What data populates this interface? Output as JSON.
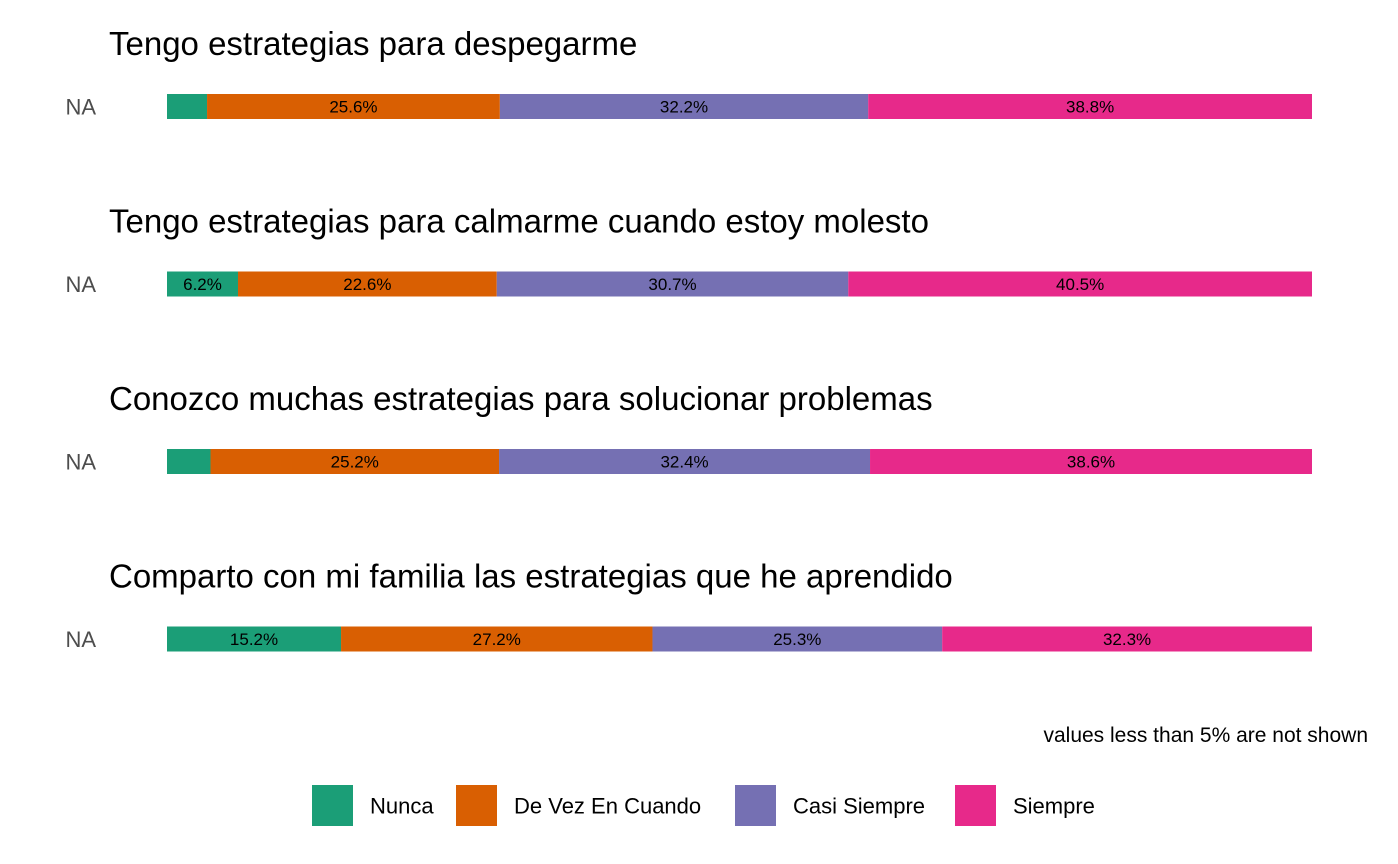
{
  "chart_data": {
    "type": "bar",
    "orientation": "horizontal",
    "stacked": true,
    "legend_position": "bottom",
    "grid": false,
    "xlim": [
      0,
      100
    ],
    "categories": [
      "Nunca",
      "De Vez En Cuando",
      "Casi Siempre",
      "Siempre"
    ],
    "colors": [
      "#1b9e77",
      "#d95f02",
      "#7570b3",
      "#e7298a"
    ],
    "caption": "values less than 5% are not shown",
    "panels": [
      {
        "title": "Tengo estrategias para despegarme",
        "ylabel": "NA",
        "values": [
          3.5,
          25.6,
          32.2,
          38.8
        ],
        "labels": [
          "",
          "25.6%",
          "32.2%",
          "38.8%"
        ]
      },
      {
        "title": "Tengo estrategias para calmarme cuando estoy molesto",
        "ylabel": "NA",
        "values": [
          6.2,
          22.6,
          30.7,
          40.5
        ],
        "labels": [
          "6.2%",
          "22.6%",
          "30.7%",
          "40.5%"
        ]
      },
      {
        "title": "Conozco muchas estrategias para solucionar problemas",
        "ylabel": "NA",
        "values": [
          3.8,
          25.2,
          32.4,
          38.6
        ],
        "labels": [
          "",
          "25.2%",
          "32.4%",
          "38.6%"
        ]
      },
      {
        "title": "Comparto con mi familia las estrategias que he aprendido",
        "ylabel": "NA",
        "values": [
          15.2,
          27.2,
          25.3,
          32.3
        ],
        "labels": [
          "15.2%",
          "27.2%",
          "25.3%",
          "32.3%"
        ]
      }
    ]
  }
}
